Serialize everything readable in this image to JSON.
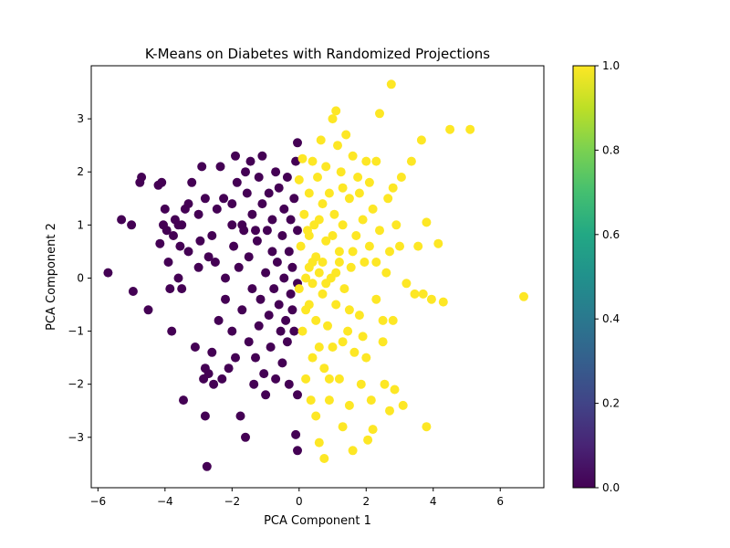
{
  "chart_data": {
    "type": "scatter",
    "title": "K-Means on Diabetes with Randomized Projections",
    "xlabel": "PCA Component 1",
    "ylabel": "PCA Component 2",
    "xlim": [
      -6.2,
      7.3
    ],
    "ylim": [
      -3.95,
      4.0
    ],
    "xticks": [
      -6,
      -4,
      -2,
      0,
      2,
      4,
      6
    ],
    "xtick_labels": [
      "−6",
      "−4",
      "−2",
      "0",
      "2",
      "4",
      "6"
    ],
    "yticks": [
      -3,
      -2,
      -1,
      0,
      1,
      2,
      3
    ],
    "ytick_labels": [
      "−3",
      "−2",
      "−1",
      "0",
      "1",
      "2",
      "3"
    ],
    "grid": false,
    "colormap": "viridis",
    "colorbar": {
      "range": [
        0.0,
        1.0
      ],
      "ticks": [
        0.0,
        0.2,
        0.4,
        0.6,
        0.8,
        1.0
      ],
      "tick_labels": [
        "0.0",
        "0.2",
        "0.4",
        "0.6",
        "0.8",
        "1.0"
      ]
    },
    "series": [
      {
        "cluster": 0,
        "color": "#440154",
        "points": [
          [
            -5.7,
            0.1
          ],
          [
            -5.3,
            1.1
          ],
          [
            -5.0,
            1.0
          ],
          [
            -4.95,
            -0.25
          ],
          [
            -4.75,
            1.8
          ],
          [
            -4.7,
            1.9
          ],
          [
            -4.5,
            -0.6
          ],
          [
            -4.2,
            1.75
          ],
          [
            -4.1,
            1.8
          ],
          [
            -4.15,
            0.65
          ],
          [
            -4.05,
            1.0
          ],
          [
            -4.0,
            1.3
          ],
          [
            -3.95,
            0.9
          ],
          [
            -3.9,
            0.3
          ],
          [
            -3.85,
            -0.2
          ],
          [
            -3.8,
            -1.0
          ],
          [
            -3.75,
            0.8
          ],
          [
            -3.7,
            1.1
          ],
          [
            -3.6,
            0.0
          ],
          [
            -3.55,
            0.6
          ],
          [
            -3.5,
            -0.2
          ],
          [
            -3.5,
            1.0
          ],
          [
            -3.45,
            -2.3
          ],
          [
            -3.4,
            1.3
          ],
          [
            -3.3,
            1.4
          ],
          [
            -3.3,
            0.5
          ],
          [
            -3.2,
            1.8
          ],
          [
            -3.1,
            -1.3
          ],
          [
            -3.0,
            0.2
          ],
          [
            -3.0,
            1.2
          ],
          [
            -2.95,
            0.7
          ],
          [
            -2.9,
            2.1
          ],
          [
            -2.85,
            -1.9
          ],
          [
            -2.8,
            1.5
          ],
          [
            -2.8,
            -2.6
          ],
          [
            -2.75,
            -3.55
          ],
          [
            -2.7,
            -1.8
          ],
          [
            -2.7,
            0.4
          ],
          [
            -2.6,
            0.8
          ],
          [
            -2.6,
            -1.4
          ],
          [
            -2.55,
            -2.0
          ],
          [
            -2.5,
            0.3
          ],
          [
            -2.45,
            1.3
          ],
          [
            -2.4,
            -0.8
          ],
          [
            -2.35,
            2.1
          ],
          [
            -2.3,
            -1.9
          ],
          [
            -2.25,
            1.5
          ],
          [
            -2.2,
            0.0
          ],
          [
            -2.2,
            -0.4
          ],
          [
            -2.1,
            -1.7
          ],
          [
            -2.0,
            1.4
          ],
          [
            -2.0,
            -1.0
          ],
          [
            -1.95,
            0.6
          ],
          [
            -1.9,
            2.3
          ],
          [
            -1.9,
            -1.5
          ],
          [
            -1.85,
            1.8
          ],
          [
            -1.8,
            0.2
          ],
          [
            -1.75,
            -2.6
          ],
          [
            -1.7,
            -0.6
          ],
          [
            -1.7,
            1.0
          ],
          [
            -1.65,
            0.9
          ],
          [
            -1.6,
            2.0
          ],
          [
            -1.6,
            -3.0
          ],
          [
            -1.55,
            1.6
          ],
          [
            -1.5,
            -1.2
          ],
          [
            -1.5,
            0.4
          ],
          [
            -1.45,
            2.2
          ],
          [
            -1.4,
            -0.2
          ],
          [
            -1.4,
            1.2
          ],
          [
            -1.35,
            -2.0
          ],
          [
            -1.3,
            -1.5
          ],
          [
            -1.25,
            0.7
          ],
          [
            -1.2,
            1.9
          ],
          [
            -1.2,
            -0.9
          ],
          [
            -1.15,
            -0.4
          ],
          [
            -1.1,
            2.3
          ],
          [
            -1.1,
            1.4
          ],
          [
            -1.05,
            -1.8
          ],
          [
            -1.0,
            0.1
          ],
          [
            -1.0,
            -2.2
          ],
          [
            -0.95,
            0.9
          ],
          [
            -0.9,
            1.6
          ],
          [
            -0.9,
            -0.7
          ],
          [
            -0.85,
            -1.3
          ],
          [
            -0.8,
            0.5
          ],
          [
            -0.8,
            1.1
          ],
          [
            -0.75,
            -0.2
          ],
          [
            -0.7,
            2.0
          ],
          [
            -0.7,
            -1.9
          ],
          [
            -0.65,
            0.3
          ],
          [
            -0.6,
            1.7
          ],
          [
            -0.6,
            -0.5
          ],
          [
            -0.55,
            -1.0
          ],
          [
            -0.5,
            0.8
          ],
          [
            -0.5,
            -1.6
          ],
          [
            -0.45,
            1.3
          ],
          [
            -0.45,
            0.0
          ],
          [
            -0.4,
            -0.8
          ],
          [
            -0.35,
            1.9
          ],
          [
            -0.35,
            -1.2
          ],
          [
            -0.3,
            0.5
          ],
          [
            -0.3,
            -2.0
          ],
          [
            -0.25,
            1.1
          ],
          [
            -0.25,
            -0.3
          ],
          [
            -0.2,
            0.2
          ],
          [
            -0.2,
            -0.6
          ],
          [
            -0.15,
            1.5
          ],
          [
            -0.15,
            -1.0
          ],
          [
            -0.1,
            2.2
          ],
          [
            -0.1,
            -2.95
          ],
          [
            -0.05,
            -3.25
          ],
          [
            -0.05,
            2.55
          ],
          [
            -0.05,
            0.9
          ],
          [
            -0.05,
            -0.1
          ],
          [
            -0.05,
            -2.2
          ],
          [
            -2.0,
            1.0
          ],
          [
            -3.6,
            1.0
          ],
          [
            -1.3,
            0.9
          ],
          [
            -2.8,
            -1.7
          ]
        ]
      },
      {
        "cluster": 1,
        "color": "#fde725",
        "points": [
          [
            0.0,
            1.85
          ],
          [
            0.0,
            -0.2
          ],
          [
            0.05,
            0.6
          ],
          [
            0.1,
            2.25
          ],
          [
            0.1,
            -1.0
          ],
          [
            0.15,
            1.2
          ],
          [
            0.2,
            0.0
          ],
          [
            0.2,
            -1.9
          ],
          [
            0.25,
            0.9
          ],
          [
            0.3,
            -0.5
          ],
          [
            0.3,
            1.6
          ],
          [
            0.35,
            -2.3
          ],
          [
            0.4,
            0.3
          ],
          [
            0.4,
            -1.5
          ],
          [
            0.45,
            1.0
          ],
          [
            0.5,
            -0.8
          ],
          [
            0.5,
            -2.6
          ],
          [
            0.55,
            1.9
          ],
          [
            0.6,
            0.1
          ],
          [
            0.6,
            -3.1
          ],
          [
            0.65,
            2.6
          ],
          [
            0.7,
            -0.3
          ],
          [
            0.7,
            1.4
          ],
          [
            0.75,
            -1.7
          ],
          [
            0.75,
            -3.4
          ],
          [
            0.8,
            0.7
          ],
          [
            0.8,
            2.1
          ],
          [
            0.85,
            -0.9
          ],
          [
            0.9,
            1.6
          ],
          [
            0.9,
            -2.3
          ],
          [
            0.95,
            0.0
          ],
          [
            1.0,
            3.0
          ],
          [
            1.0,
            -1.3
          ],
          [
            1.05,
            1.2
          ],
          [
            1.1,
            3.15
          ],
          [
            1.1,
            -0.5
          ],
          [
            1.15,
            2.5
          ],
          [
            1.2,
            0.5
          ],
          [
            1.2,
            -1.9
          ],
          [
            1.25,
            2.0
          ],
          [
            1.3,
            -2.8
          ],
          [
            1.3,
            1.0
          ],
          [
            1.35,
            -0.2
          ],
          [
            1.4,
            2.7
          ],
          [
            1.45,
            -1.0
          ],
          [
            1.5,
            1.5
          ],
          [
            1.5,
            -2.4
          ],
          [
            1.55,
            0.2
          ],
          [
            1.6,
            2.3
          ],
          [
            1.6,
            -3.25
          ],
          [
            1.65,
            -1.4
          ],
          [
            1.7,
            0.8
          ],
          [
            1.75,
            1.9
          ],
          [
            1.8,
            -0.7
          ],
          [
            1.85,
            -2.0
          ],
          [
            1.9,
            1.1
          ],
          [
            1.95,
            0.3
          ],
          [
            2.0,
            -1.5
          ],
          [
            2.0,
            2.2
          ],
          [
            2.05,
            -3.05
          ],
          [
            2.1,
            0.6
          ],
          [
            2.15,
            -2.3
          ],
          [
            2.2,
            -2.85
          ],
          [
            2.2,
            1.3
          ],
          [
            2.3,
            -0.4
          ],
          [
            2.3,
            2.2
          ],
          [
            2.4,
            3.1
          ],
          [
            2.4,
            0.9
          ],
          [
            2.5,
            -1.2
          ],
          [
            2.55,
            -2.0
          ],
          [
            2.6,
            0.1
          ],
          [
            2.65,
            1.5
          ],
          [
            2.7,
            -2.5
          ],
          [
            2.75,
            3.65
          ],
          [
            2.8,
            -0.8
          ],
          [
            2.85,
            -2.1
          ],
          [
            2.9,
            1.0
          ],
          [
            3.0,
            0.6
          ],
          [
            3.05,
            1.9
          ],
          [
            3.1,
            -2.4
          ],
          [
            3.2,
            -0.1
          ],
          [
            3.35,
            2.2
          ],
          [
            3.45,
            -0.3
          ],
          [
            3.55,
            0.6
          ],
          [
            3.65,
            2.6
          ],
          [
            3.7,
            -0.3
          ],
          [
            3.8,
            1.05
          ],
          [
            3.8,
            -2.8
          ],
          [
            3.95,
            -0.4
          ],
          [
            4.15,
            0.65
          ],
          [
            4.3,
            -0.45
          ],
          [
            4.5,
            2.8
          ],
          [
            5.1,
            2.8
          ],
          [
            6.7,
            -0.35
          ],
          [
            2.8,
            1.7
          ],
          [
            1.3,
            -1.2
          ],
          [
            0.4,
            -0.1
          ],
          [
            0.7,
            0.3
          ],
          [
            1.1,
            0.1
          ],
          [
            0.5,
            0.4
          ],
          [
            0.8,
            -0.1
          ],
          [
            0.3,
            0.8
          ],
          [
            1.6,
            0.5
          ],
          [
            2.3,
            0.3
          ],
          [
            1.0,
            0.8
          ],
          [
            0.2,
            -0.6
          ],
          [
            0.9,
            -1.9
          ],
          [
            1.5,
            -0.6
          ],
          [
            2.5,
            -0.8
          ],
          [
            1.8,
            1.6
          ],
          [
            0.6,
            1.1
          ],
          [
            2.1,
            1.8
          ],
          [
            0.4,
            2.2
          ],
          [
            1.3,
            1.7
          ],
          [
            0.6,
            -1.3
          ],
          [
            1.9,
            -1.1
          ],
          [
            0.3,
            0.2
          ],
          [
            1.2,
            0.3
          ],
          [
            2.7,
            0.5
          ]
        ]
      }
    ]
  }
}
